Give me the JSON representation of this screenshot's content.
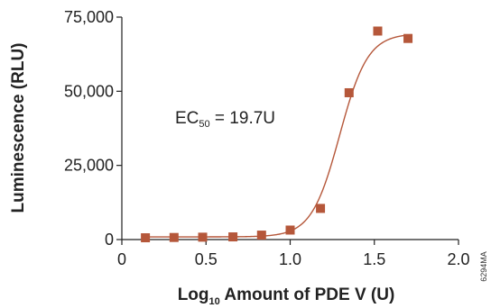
{
  "chart_data": {
    "type": "scatter",
    "x_label_base": "Log",
    "x_label_subscript": "10",
    "x_label_rest": " Amount of PDE V (U)",
    "ylabel": "Luminescence (RLU)",
    "xlim": [
      0,
      2.0
    ],
    "ylim": [
      0,
      75000
    ],
    "x_ticks": [
      0,
      0.5,
      1.0,
      1.5,
      2.0
    ],
    "x_tick_labels": [
      "0",
      "0.5",
      "1.0",
      "1.5",
      "2.0"
    ],
    "y_ticks": [
      0,
      25000,
      50000,
      75000
    ],
    "y_tick_labels": [
      "0",
      "25,000",
      "50,000",
      "75,000"
    ],
    "annotation": {
      "prefix": "EC",
      "subscript": "50",
      "suffix": " = 19.7U"
    },
    "marker_color": "#b5573a",
    "curve_color": "#b5573a",
    "series": [
      {
        "x": [
          0.14,
          0.31,
          0.48,
          0.66,
          0.83,
          1.0,
          1.18,
          1.35,
          1.52,
          1.7
        ],
        "y": [
          600,
          700,
          800,
          900,
          1500,
          3200,
          10500,
          49500,
          70300,
          67800
        ]
      }
    ],
    "fit_curve": {
      "bottom": 900,
      "top": 69500,
      "log_ec50": 1.294,
      "hill_slope": 5.2
    }
  },
  "figure_code": "6294MA"
}
